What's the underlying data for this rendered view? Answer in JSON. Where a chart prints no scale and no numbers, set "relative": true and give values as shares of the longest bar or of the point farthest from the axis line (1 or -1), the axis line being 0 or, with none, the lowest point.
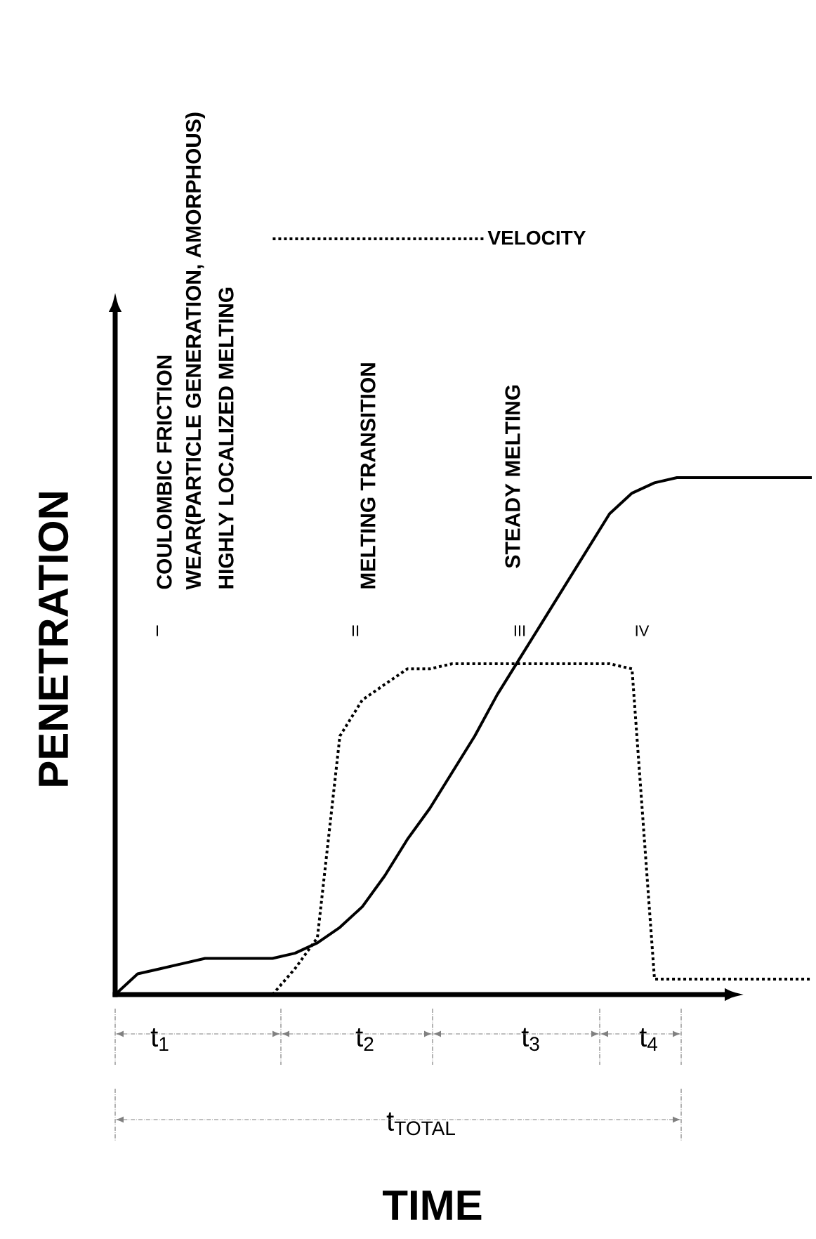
{
  "chart_data": {
    "type": "line",
    "relative": true,
    "xlabel": "TIME",
    "ylabel": "PENETRATION",
    "categories": [
      null,
      null,
      null,
      null,
      null,
      null,
      null,
      null,
      null,
      null,
      null,
      null,
      null,
      null,
      null,
      null,
      null,
      null,
      null,
      null,
      null,
      null,
      null,
      null,
      null,
      null,
      null,
      null,
      null,
      null,
      null,
      null
    ],
    "series": [
      {
        "color": "#000000",
        "line_style": "solid",
        "values": [
          0,
          0.04,
          0.05,
          0.06,
          0.07,
          0.07,
          0.07,
          0.07,
          0.08,
          0.1,
          0.13,
          0.17,
          0.23,
          0.3,
          0.36,
          0.43,
          0.5,
          0.58,
          0.65,
          0.72,
          0.79,
          0.86,
          0.93,
          0.97,
          0.99,
          1,
          1,
          1,
          1,
          1,
          1,
          1
        ]
      },
      {
        "name": "VELOCITY",
        "color": "#000000",
        "line_style": "dotted",
        "values": [
          null,
          null,
          null,
          null,
          null,
          null,
          null,
          0,
          0.05,
          0.11,
          0.5,
          0.57,
          0.6,
          0.63,
          0.63,
          0.64,
          0.64,
          0.64,
          0.64,
          0.64,
          0.64,
          0.64,
          0.64,
          0.63,
          0.03,
          0.03,
          0.03,
          0.03,
          0.03,
          0.03,
          0.03,
          0.03
        ]
      }
    ],
    "legend": "top",
    "marker": "none",
    "annotations": [
      "COULOMBIC FRICTION",
      "WEAR(PARTICLE GENERATION, AMORPHOUS)",
      "HIGHLY LOCALIZED MELTING",
      "MELTING TRANSITION",
      "STEADY MELTING",
      "I",
      "II",
      "III",
      "IV",
      "t$_{1}$",
      "t$_{2}$",
      "t$_{3}$",
      "t$_{4}$",
      "t$_{TOTAL}$"
    ]
  }
}
